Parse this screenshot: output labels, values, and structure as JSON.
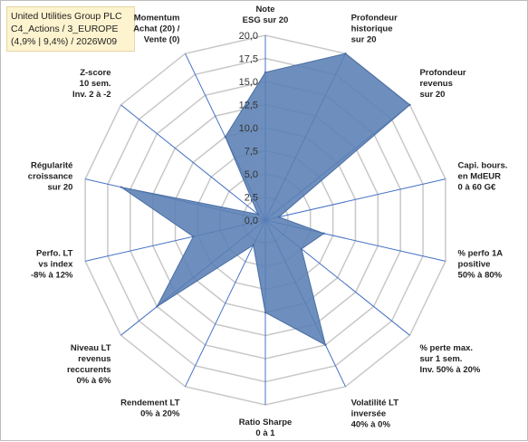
{
  "header": {
    "line1": "United Utilities Group PLC",
    "line2": "C4_Actions / 3_EUROPE",
    "line3": "(4,9% | 9,4%) / 2026W09"
  },
  "chart_data": {
    "type": "radar",
    "title": "",
    "rlim": [
      0,
      20
    ],
    "ticks": [
      "0,0",
      "2,5",
      "5,0",
      "7,5",
      "10,0",
      "12,5",
      "15,0",
      "17,5",
      "20,0"
    ],
    "grid": true,
    "fill_color": "#5a7fb4",
    "axes": [
      {
        "label": [
          "Note",
          "ESG sur 20"
        ],
        "value": 16
      },
      {
        "label": [
          "Profondeur",
          "historique",
          "sur 20"
        ],
        "value": 20
      },
      {
        "label": [
          "Profondeur",
          "revenus",
          "sur 20"
        ],
        "value": 20
      },
      {
        "label": [
          "Capi. bours.",
          "en MdEUR",
          "0 à 60 G€"
        ],
        "value": 1.5
      },
      {
        "label": [
          "% perfo 1A",
          "positive",
          "50% à 80%"
        ],
        "value": 6.5
      },
      {
        "label": [
          "% perte max.",
          "sur 1 sem.",
          "Inv. 50% à 20%"
        ],
        "value": 5
      },
      {
        "label": [
          "Volatilité LT",
          "inversée",
          "40% à 0%"
        ],
        "value": 15
      },
      {
        "label": [
          "Ratio Sharpe",
          "0 à 1"
        ],
        "value": 10
      },
      {
        "label": [
          "Rendement LT",
          "0% à 20%"
        ],
        "value": 3
      },
      {
        "label": [
          "Niveau LT",
          "revenus",
          "reccurents",
          "0% à 6%"
        ],
        "value": 15
      },
      {
        "label": [
          "Perfo. LT",
          "vs index",
          "-8% à 12%"
        ],
        "value": 8
      },
      {
        "label": [
          "Régularité",
          "croissance",
          "sur 20"
        ],
        "value": 16
      },
      {
        "label": [
          "Z-score",
          "10 sem.",
          "Inv. 2 à -2"
        ],
        "value": 1
      },
      {
        "label": [
          "Momentum",
          "Achat (20) /",
          "Vente (0)"
        ],
        "value": 10
      }
    ]
  }
}
